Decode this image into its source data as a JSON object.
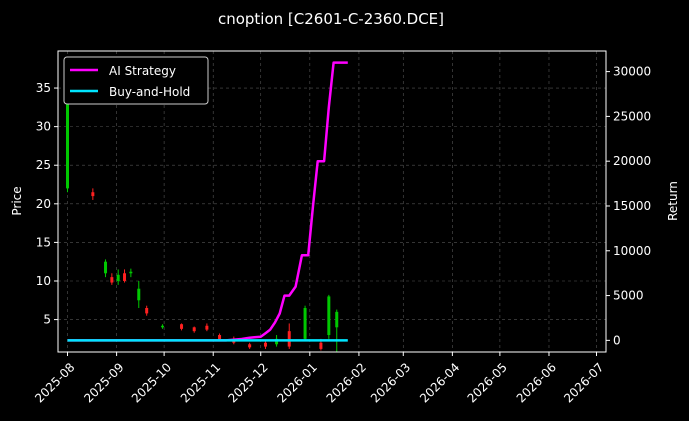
{
  "chart_data": {
    "type": "line",
    "title": "cnoption [C2601-C-2360.DCE]",
    "xlabel": "",
    "ylabel": "Price",
    "y2label": "Return",
    "grid": true,
    "legend": "top-left",
    "x_ticks": [
      "2025-08",
      "2025-09",
      "2025-10",
      "2025-11",
      "2025-12",
      "2026-01",
      "2026-02",
      "2026-03",
      "2026-04",
      "2026-05",
      "2026-06",
      "2026-07"
    ],
    "y_ticks": [
      5,
      10,
      15,
      20,
      25,
      30,
      35
    ],
    "y2_ticks": [
      0,
      5000,
      10000,
      15000,
      20000,
      25000,
      30000
    ],
    "ylim": [
      0.8,
      39.8
    ],
    "y2lim": [
      -1300,
      32300
    ],
    "xlim_days": [
      -6,
      340
    ],
    "series": [
      {
        "name": "AI Strategy",
        "color": "#ff00ff",
        "x": [
          0,
          100,
          110,
          115,
          118,
          122,
          125,
          128,
          131,
          134,
          137,
          140,
          144,
          148,
          152,
          155,
          158,
          162,
          165,
          168,
          171,
          174,
          177
        ],
        "values": [
          0,
          0,
          150,
          300,
          350,
          400,
          800,
          1200,
          2000,
          3000,
          5000,
          5000,
          6000,
          9500,
          9500,
          15000,
          20000,
          20000,
          26000,
          31000,
          31000,
          31000,
          31000
        ]
      },
      {
        "name": "Buy-and-Hold",
        "color": "#00e5ff",
        "x": [
          0,
          177
        ],
        "values": [
          0,
          0
        ]
      }
    ],
    "candles": [
      {
        "x": 0,
        "open": 22,
        "close": 35,
        "high": 36,
        "low": 21.5
      },
      {
        "x": 16,
        "open": 21.5,
        "close": 21,
        "high": 22,
        "low": 20.5
      },
      {
        "x": 24,
        "open": 11,
        "close": 12.5,
        "high": 12.8,
        "low": 10.5
      },
      {
        "x": 28,
        "open": 10.5,
        "close": 9.8,
        "high": 11,
        "low": 9.5
      },
      {
        "x": 32,
        "open": 10,
        "close": 10.8,
        "high": 11.5,
        "low": 9.5
      },
      {
        "x": 36,
        "open": 11,
        "close": 10,
        "high": 11.5,
        "low": 9.8
      },
      {
        "x": 40,
        "open": 11,
        "close": 11.2,
        "high": 11.6,
        "low": 10.5
      },
      {
        "x": 45,
        "open": 7.5,
        "close": 9,
        "high": 10,
        "low": 6.5
      },
      {
        "x": 50,
        "open": 6.5,
        "close": 5.8,
        "high": 6.8,
        "low": 5.5
      },
      {
        "x": 60,
        "open": 4,
        "close": 4.2,
        "high": 4.4,
        "low": 3.8
      },
      {
        "x": 72,
        "open": 4.4,
        "close": 3.8,
        "high": 4.5,
        "low": 3.6
      },
      {
        "x": 80,
        "open": 4,
        "close": 3.5,
        "high": 4.1,
        "low": 3.3
      },
      {
        "x": 88,
        "open": 4.2,
        "close": 3.7,
        "high": 4.5,
        "low": 3.5
      },
      {
        "x": 96,
        "open": 3,
        "close": 2.4,
        "high": 3.2,
        "low": 2.2
      },
      {
        "x": 105,
        "open": 2.5,
        "close": 2,
        "high": 2.8,
        "low": 1.8
      },
      {
        "x": 115,
        "open": 1.8,
        "close": 1.4,
        "high": 2,
        "low": 1.2
      },
      {
        "x": 125,
        "open": 2,
        "close": 1.5,
        "high": 2.4,
        "low": 1.2
      },
      {
        "x": 132,
        "open": 1.8,
        "close": 2.5,
        "high": 3,
        "low": 1.5
      },
      {
        "x": 140,
        "open": 3.5,
        "close": 1.5,
        "high": 4.5,
        "low": 1.2
      },
      {
        "x": 150,
        "open": 2.5,
        "close": 6.5,
        "high": 6.8,
        "low": 2.2
      },
      {
        "x": 160,
        "open": 2,
        "close": 1.2,
        "high": 2.5,
        "low": 1
      },
      {
        "x": 165,
        "open": 3,
        "close": 8,
        "high": 8.2,
        "low": 2.5
      },
      {
        "x": 170,
        "open": 4,
        "close": 6,
        "high": 6.3,
        "low": 0.8
      }
    ]
  }
}
